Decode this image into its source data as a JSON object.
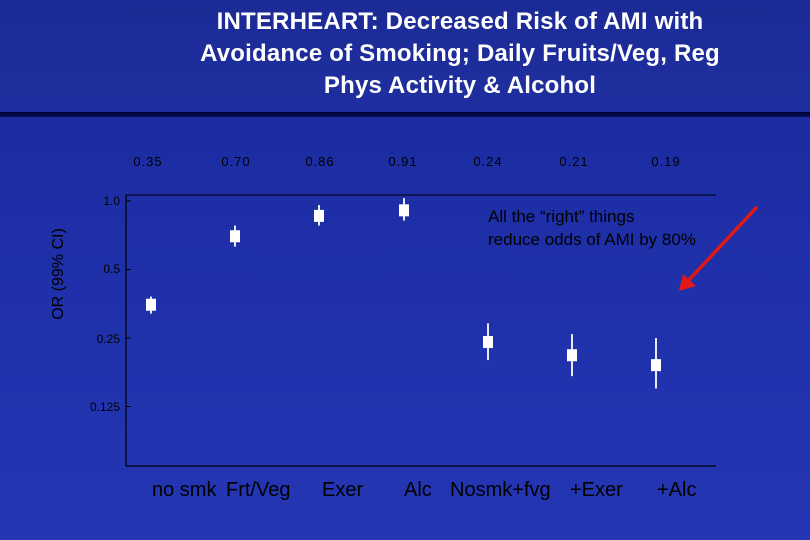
{
  "title_lines": [
    "INTERHEART: Decreased Risk of AMI with",
    "Avoidance of Smoking; Daily Fruits/Veg, Reg",
    "Phys Activity & Alcohol"
  ],
  "annotation_lines": [
    "All the “right” things",
    " reduce odds of AMI by 80%"
  ],
  "colors": {
    "background": "#1e2fa8",
    "marker": "#ffffff",
    "text": "#000000",
    "arrow": "#e01818"
  },
  "chart_data": {
    "type": "scatter",
    "ylabel": "OR (99% CI)",
    "yscale": "log2",
    "yticks": [
      1.0,
      0.5,
      0.25,
      0.125
    ],
    "ytick_labels": [
      "1.0",
      "0.5",
      "0.25",
      "0.125"
    ],
    "odds_labels": [
      "0.35",
      "0.70",
      "0.86",
      "0.91",
      "0.24",
      "0.21",
      "0.19"
    ],
    "category_labels": [
      "no smk",
      "Frt/Veg",
      "Exer",
      "Alc",
      "Nosmk+fvg",
      "+Exer",
      "+Alc"
    ],
    "series": [
      {
        "or": [
          0.35,
          0.7,
          0.86,
          0.91,
          0.24,
          0.21,
          0.19
        ],
        "lower": [
          0.32,
          0.63,
          0.78,
          0.82,
          0.2,
          0.17,
          0.15
        ],
        "upper": [
          0.38,
          0.78,
          0.96,
          1.03,
          0.29,
          0.26,
          0.25
        ]
      }
    ]
  }
}
